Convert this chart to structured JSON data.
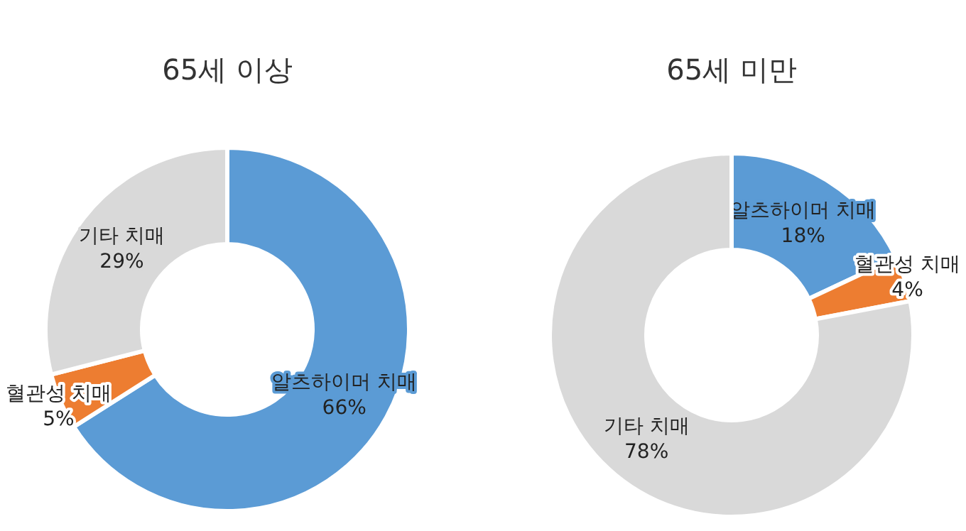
{
  "chart_data": [
    {
      "type": "donut",
      "title": "65세 이상",
      "categories": [
        "알츠하이머 치매",
        "혈관성 치매",
        "기타 치매"
      ],
      "values": [
        66,
        5,
        29
      ],
      "value_labels": [
        "66%",
        "5%",
        "29%"
      ],
      "colors": [
        "#5b9bd5",
        "#ed7d31",
        "#d9d9d9"
      ],
      "legend": false
    },
    {
      "type": "donut",
      "title": "65세 미만",
      "categories": [
        "알츠하이머 치매",
        "혈관성 치매",
        "기타 치매"
      ],
      "values": [
        18,
        4,
        78
      ],
      "value_labels": [
        "18%",
        "4%",
        "78%"
      ],
      "colors": [
        "#5b9bd5",
        "#ed7d31",
        "#d9d9d9"
      ],
      "legend": false
    }
  ]
}
